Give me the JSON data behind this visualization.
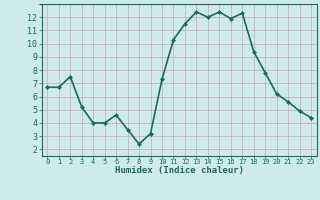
{
  "x": [
    0,
    1,
    2,
    3,
    4,
    5,
    6,
    7,
    8,
    9,
    10,
    11,
    12,
    13,
    14,
    15,
    16,
    17,
    18,
    19,
    20,
    21,
    22,
    23
  ],
  "y": [
    6.7,
    6.7,
    7.5,
    5.2,
    4.0,
    4.0,
    4.6,
    3.5,
    2.4,
    3.2,
    7.3,
    10.3,
    11.5,
    12.4,
    12.0,
    12.4,
    11.9,
    12.3,
    9.4,
    7.8,
    6.2,
    5.6,
    4.9,
    4.4
  ],
  "xlabel": "Humidex (Indice chaleur)",
  "xlim": [
    -0.5,
    23.5
  ],
  "ylim": [
    1.5,
    13.0
  ],
  "yticks": [
    2,
    3,
    4,
    5,
    6,
    7,
    8,
    9,
    10,
    11,
    12
  ],
  "xticks": [
    0,
    1,
    2,
    3,
    4,
    5,
    6,
    7,
    8,
    9,
    10,
    11,
    12,
    13,
    14,
    15,
    16,
    17,
    18,
    19,
    20,
    21,
    22,
    23
  ],
  "line_color": "#1a6b5e",
  "marker": "D",
  "marker_size": 2.0,
  "bg_color": "#ceeaea",
  "grid_color_major": "#c8a8a8",
  "grid_color_minor": "#ddc8c8",
  "tick_label_color": "#1a6b5e",
  "xlabel_color": "#1a6b5e",
  "line_width": 1.2,
  "spine_color": "#1a6b5e"
}
